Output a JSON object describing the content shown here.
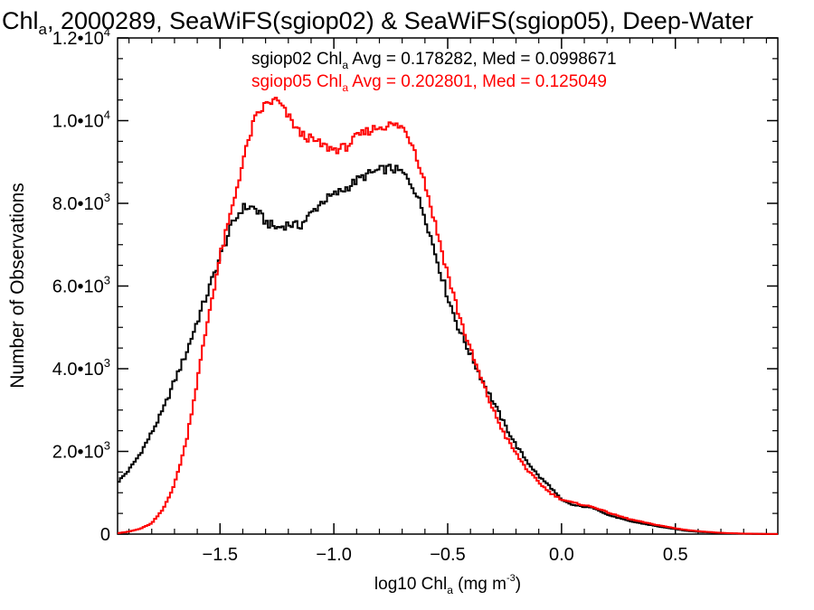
{
  "chart_data": {
    "type": "line",
    "title": {
      "prefix": "Chl",
      "sub": "a",
      "rest": ", 2000289, SeaWiFS(sgiop02) & SeaWiFS(sgiop05), Deep-Water"
    },
    "xlabel": {
      "prefix": "log10 Chl",
      "sub": "a",
      "mid": " (mg m",
      "sup": "-3",
      "end": ")"
    },
    "ylabel": "Number of Observations",
    "xlim": [
      -1.95,
      0.95
    ],
    "ylim": [
      0,
      12000
    ],
    "x_ticks": [
      {
        "value": -1.5,
        "label": "−1.5"
      },
      {
        "value": -1.0,
        "label": "−1.0"
      },
      {
        "value": -0.5,
        "label": "−0.5"
      },
      {
        "value": 0.0,
        "label": "0.0"
      },
      {
        "value": 0.5,
        "label": "0.5"
      }
    ],
    "y_ticks": [
      {
        "value": 0,
        "mant": "0",
        "exp": ""
      },
      {
        "value": 2000,
        "mant": "2.0•10",
        "exp": "3"
      },
      {
        "value": 4000,
        "mant": "4.0•10",
        "exp": "3"
      },
      {
        "value": 6000,
        "mant": "6.0•10",
        "exp": "3"
      },
      {
        "value": 8000,
        "mant": "8.0•10",
        "exp": "3"
      },
      {
        "value": 10000,
        "mant": "1.0•10",
        "exp": "4"
      },
      {
        "value": 12000,
        "mant": "1.2•10",
        "exp": "4"
      }
    ],
    "series": [
      {
        "name": "sgiop02",
        "color": "#000000",
        "legend": {
          "prefix": "sgiop02 Chl",
          "sub": "a",
          "rest": " Avg = 0.178282, Med = 0.0998671"
        },
        "x": [
          -1.95,
          -1.9,
          -1.85,
          -1.8,
          -1.75,
          -1.7,
          -1.65,
          -1.6,
          -1.55,
          -1.5,
          -1.45,
          -1.4,
          -1.35,
          -1.3,
          -1.25,
          -1.2,
          -1.15,
          -1.1,
          -1.05,
          -1.0,
          -0.95,
          -0.9,
          -0.85,
          -0.8,
          -0.75,
          -0.7,
          -0.65,
          -0.6,
          -0.55,
          -0.5,
          -0.45,
          -0.4,
          -0.35,
          -0.3,
          -0.25,
          -0.2,
          -0.15,
          -0.1,
          -0.05,
          0.0,
          0.05,
          0.1,
          0.15,
          0.2,
          0.25,
          0.3,
          0.35,
          0.4,
          0.45,
          0.5,
          0.55,
          0.6,
          0.65,
          0.7,
          0.75,
          0.8,
          0.85,
          0.9,
          0.95
        ],
        "y": [
          1250,
          1550,
          1950,
          2450,
          3000,
          3700,
          4350,
          5150,
          5900,
          6700,
          7450,
          7900,
          7900,
          7550,
          7400,
          7500,
          7450,
          7750,
          8050,
          8200,
          8350,
          8550,
          8700,
          8800,
          8850,
          8750,
          8400,
          7700,
          6700,
          5750,
          4950,
          4350,
          3750,
          3200,
          2650,
          2150,
          1750,
          1400,
          1150,
          820,
          700,
          660,
          620,
          470,
          390,
          310,
          260,
          210,
          160,
          120,
          80,
          55,
          40,
          25,
          15,
          10,
          6,
          3,
          2
        ]
      },
      {
        "name": "sgiop05",
        "color": "#ff0000",
        "legend": {
          "prefix": "sgiop05 Chl",
          "sub": "a",
          "rest": " Avg = 0.202801, Med = 0.125049"
        },
        "x": [
          -1.95,
          -1.9,
          -1.85,
          -1.8,
          -1.75,
          -1.7,
          -1.65,
          -1.6,
          -1.55,
          -1.5,
          -1.45,
          -1.4,
          -1.35,
          -1.3,
          -1.25,
          -1.2,
          -1.15,
          -1.1,
          -1.05,
          -1.0,
          -0.95,
          -0.9,
          -0.85,
          -0.8,
          -0.75,
          -0.7,
          -0.65,
          -0.6,
          -0.55,
          -0.5,
          -0.45,
          -0.4,
          -0.35,
          -0.3,
          -0.25,
          -0.2,
          -0.15,
          -0.1,
          -0.05,
          0.0,
          0.05,
          0.1,
          0.15,
          0.2,
          0.25,
          0.3,
          0.35,
          0.4,
          0.45,
          0.5,
          0.55,
          0.6,
          0.65,
          0.7,
          0.75,
          0.8,
          0.85,
          0.9,
          0.95
        ],
        "y": [
          20,
          60,
          130,
          260,
          600,
          1200,
          2200,
          3700,
          5300,
          6700,
          7800,
          9000,
          10000,
          10400,
          10500,
          10100,
          9700,
          9550,
          9400,
          9300,
          9350,
          9600,
          9750,
          9850,
          9900,
          9850,
          9400,
          8500,
          7400,
          6300,
          5300,
          4450,
          3700,
          3000,
          2400,
          1950,
          1550,
          1250,
          1000,
          840,
          760,
          700,
          640,
          530,
          440,
          360,
          300,
          240,
          190,
          140,
          100,
          70,
          50,
          30,
          20,
          12,
          8,
          4,
          2
        ]
      }
    ],
    "grid": false,
    "legend_position": "top"
  }
}
